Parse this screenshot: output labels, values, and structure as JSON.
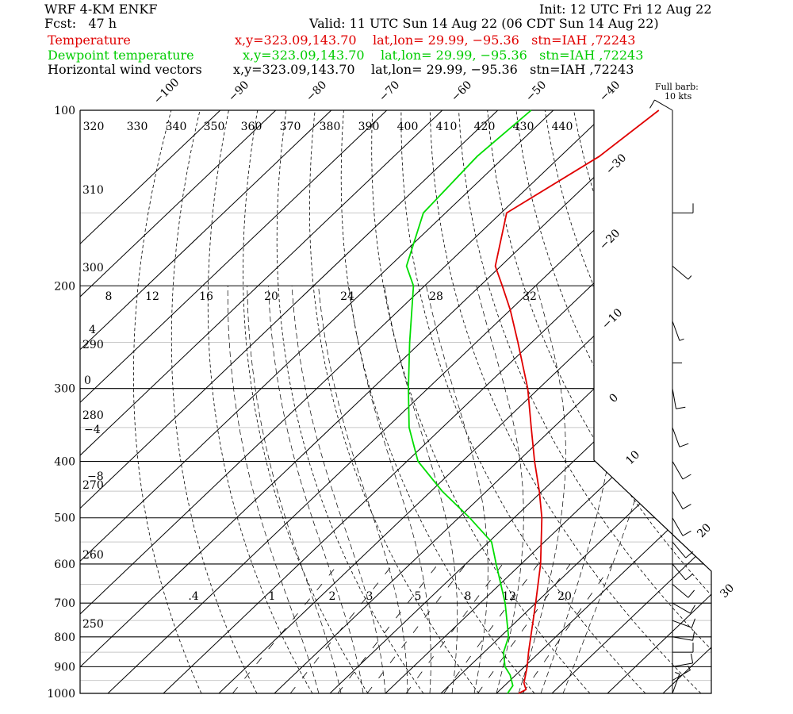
{
  "header": {
    "model": "WRF 4-KM ENKF",
    "init": "Init: 12 UTC Fri 12 Aug 22",
    "fcst": "Fcst:   47 h",
    "valid": "Valid: 11 UTC Sun 14 Aug 22 (06 CDT Sun 14 Aug 22)",
    "temp_label": "Temperature",
    "temp_meta": "x,y=323.09,143.70    lat,lon= 29.99, −95.36   stn=IAH ,72243",
    "dew_label": "Dewpoint temperature",
    "dew_meta": "x,y=323.09,143.70    lat,lon= 29.99, −95.36   stn=IAH ,72243",
    "wind_label": "Horizontal wind vectors",
    "wind_meta": "x,y=323.09,143.70    lat,lon= 29.99, −95.36   stn=IAH ,72243",
    "barb_title_1": "Full barb:",
    "barb_title_2": "10 kts"
  },
  "colors": {
    "temperature": "#e00000",
    "dewpoint": "#00dd00",
    "text": "#000000",
    "temp_text": "#e00000",
    "dew_text": "#00cc00"
  },
  "chart_data": {
    "type": "line",
    "diagram": "skew-T log-P",
    "pressure_levels": [
      100,
      200,
      300,
      400,
      500,
      600,
      700,
      800,
      900,
      1000
    ],
    "isotherm_labels": [
      "−100",
      "−90",
      "−80",
      "−70",
      "−60",
      "−50",
      "−40",
      "−30",
      "−20",
      "−10",
      "0",
      "10",
      "20",
      "30",
      "40"
    ],
    "theta_top_labels": [
      "320",
      "330",
      "340",
      "350",
      "360",
      "370",
      "380",
      "390",
      "400",
      "410",
      "420",
      "430",
      "440"
    ],
    "theta_left_labels": [
      "310",
      "300",
      "290",
      "280",
      "270",
      "260",
      "250"
    ],
    "theta_e_labels": [
      "8",
      "12",
      "16",
      "20",
      "24",
      "28",
      "32"
    ],
    "left_extra_labels": [
      "4",
      "0",
      "−4",
      "−8"
    ],
    "mixing_ratio_labels": [
      ".4",
      "1",
      "2",
      "3",
      "5",
      "8",
      "12",
      "20"
    ],
    "series": [
      {
        "name": "Temperature",
        "points": [
          {
            "p": 1000,
            "t": 24.0
          },
          {
            "p": 985,
            "t": 24.6
          },
          {
            "p": 960,
            "t": 23.0
          },
          {
            "p": 900,
            "t": 20.5
          },
          {
            "p": 850,
            "t": 18.0
          },
          {
            "p": 800,
            "t": 15.5
          },
          {
            "p": 700,
            "t": 10.0
          },
          {
            "p": 600,
            "t": 3.5
          },
          {
            "p": 500,
            "t": -5.0
          },
          {
            "p": 450,
            "t": -10.5
          },
          {
            "p": 400,
            "t": -17.0
          },
          {
            "p": 350,
            "t": -24.0
          },
          {
            "p": 300,
            "t": -32.0
          },
          {
            "p": 250,
            "t": -42.5
          },
          {
            "p": 220,
            "t": -50.0
          },
          {
            "p": 200,
            "t": -56.0
          },
          {
            "p": 185,
            "t": -61.0
          },
          {
            "p": 150,
            "t": -69.0
          },
          {
            "p": 120,
            "t": -63.0
          },
          {
            "p": 100,
            "t": -61.0
          }
        ]
      },
      {
        "name": "Dewpoint temperature",
        "points": [
          {
            "p": 1000,
            "t": 22.0
          },
          {
            "p": 970,
            "t": 21.5
          },
          {
            "p": 930,
            "t": 19.0
          },
          {
            "p": 900,
            "t": 16.5
          },
          {
            "p": 850,
            "t": 13.5
          },
          {
            "p": 800,
            "t": 11.5
          },
          {
            "p": 700,
            "t": 4.5
          },
          {
            "p": 600,
            "t": -4.5
          },
          {
            "p": 550,
            "t": -9.5
          },
          {
            "p": 500,
            "t": -18.0
          },
          {
            "p": 450,
            "t": -28.0
          },
          {
            "p": 400,
            "t": -38.0
          },
          {
            "p": 350,
            "t": -46.0
          },
          {
            "p": 300,
            "t": -53.5
          },
          {
            "p": 250,
            "t": -62.0
          },
          {
            "p": 200,
            "t": -72.0
          },
          {
            "p": 185,
            "t": -77.0
          },
          {
            "p": 150,
            "t": -84.0
          },
          {
            "p": 120,
            "t": -85.0
          },
          {
            "p": 100,
            "t": -84.0
          }
        ]
      }
    ],
    "wind_barbs": [
      {
        "p": 100,
        "dir": 300,
        "spd": 10
      },
      {
        "p": 150,
        "dir": 90,
        "spd": 10
      },
      {
        "p": 185,
        "dir": 130,
        "spd": 8
      },
      {
        "p": 230,
        "dir": 160,
        "spd": 5
      },
      {
        "p": 250,
        "dir": 180,
        "spd": 10
      },
      {
        "p": 300,
        "dir": 170,
        "spd": 10
      },
      {
        "p": 350,
        "dir": 160,
        "spd": 10
      },
      {
        "p": 400,
        "dir": 150,
        "spd": 10
      },
      {
        "p": 450,
        "dir": 150,
        "spd": 10
      },
      {
        "p": 500,
        "dir": 150,
        "spd": 10
      },
      {
        "p": 550,
        "dir": 140,
        "spd": 10
      },
      {
        "p": 600,
        "dir": 140,
        "spd": 10
      },
      {
        "p": 650,
        "dir": 130,
        "spd": 10
      },
      {
        "p": 700,
        "dir": 120,
        "spd": 10
      },
      {
        "p": 750,
        "dir": 110,
        "spd": 10
      },
      {
        "p": 800,
        "dir": 100,
        "spd": 10
      },
      {
        "p": 850,
        "dir": 90,
        "spd": 10
      },
      {
        "p": 900,
        "dir": 80,
        "spd": 10
      },
      {
        "p": 950,
        "dir": 60,
        "spd": 5
      },
      {
        "p": 1000,
        "dir": 20,
        "spd": 5
      }
    ],
    "grid": true,
    "legend": "top-left"
  }
}
